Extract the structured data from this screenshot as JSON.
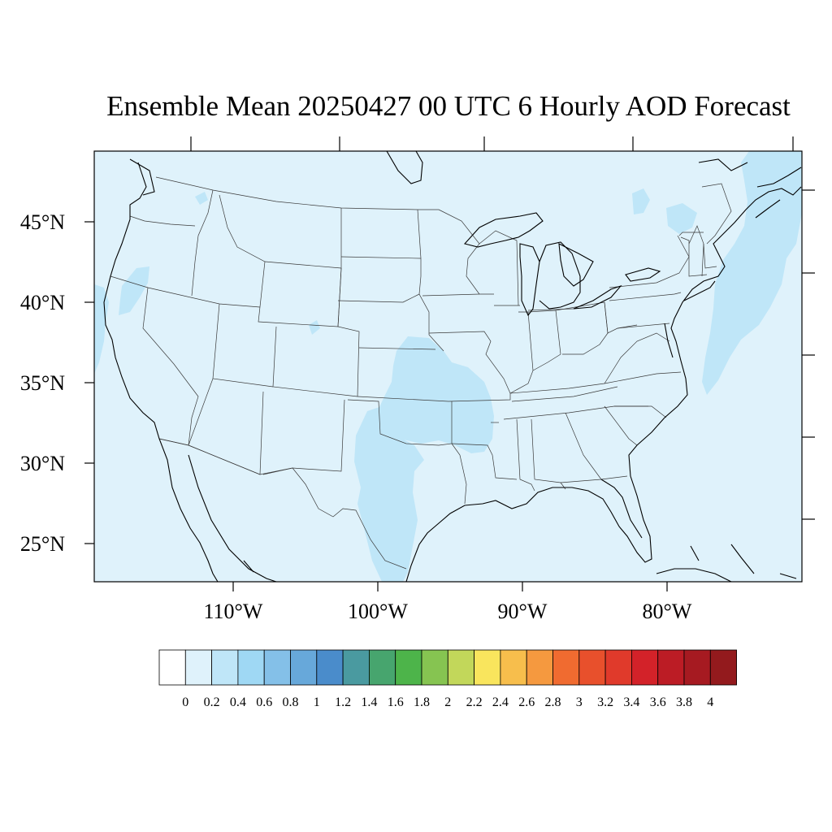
{
  "title": "Ensemble Mean 20250427 00 UTC 6 Hourly AOD Forecast",
  "map": {
    "background_color": "#dff2fb",
    "lat_labels": [
      "45°N",
      "40°N",
      "35°N",
      "30°N",
      "25°N"
    ],
    "lon_labels": [
      "110°W",
      "100°W",
      "90°W",
      "80°W"
    ]
  },
  "aod_regions": [
    {
      "name": "southern-plains-high-aod",
      "level": "0.2-0.4",
      "color": "#bfe6f8"
    },
    {
      "name": "west-texas-high-aod",
      "level": "0.2-0.4",
      "color": "#bfe6f8"
    },
    {
      "name": "atlantic-high-aod",
      "level": "0.2-0.4",
      "color": "#bfe6f8"
    },
    {
      "name": "pacific-high-aod",
      "level": "0.2-0.4",
      "color": "#bfe6f8"
    },
    {
      "name": "northern-california-high-aod",
      "level": "0.2-0.4",
      "color": "#bfe6f8"
    },
    {
      "name": "great-lakes-high-aod",
      "level": "0.2-0.4",
      "color": "#bfe6f8"
    }
  ],
  "colorbar": {
    "labels": [
      "0",
      "0.2",
      "0.4",
      "0.6",
      "0.8",
      "1",
      "1.2",
      "1.4",
      "1.6",
      "1.8",
      "2",
      "2.2",
      "2.4",
      "2.6",
      "2.8",
      "3",
      "3.2",
      "3.4",
      "3.6",
      "3.8",
      "4"
    ],
    "colors": [
      "#ffffff",
      "#dff2fb",
      "#bfe6f8",
      "#9fd8f4",
      "#84c0e8",
      "#67a8da",
      "#4a8ccb",
      "#4a9aa0",
      "#47a56e",
      "#4db44a",
      "#86c451",
      "#c2d75a",
      "#f9e55d",
      "#f7be4c",
      "#f5993f",
      "#f06b30",
      "#e8502c",
      "#e03a2b",
      "#d32229",
      "#bc1c25",
      "#a61a21",
      "#931a1d"
    ]
  }
}
